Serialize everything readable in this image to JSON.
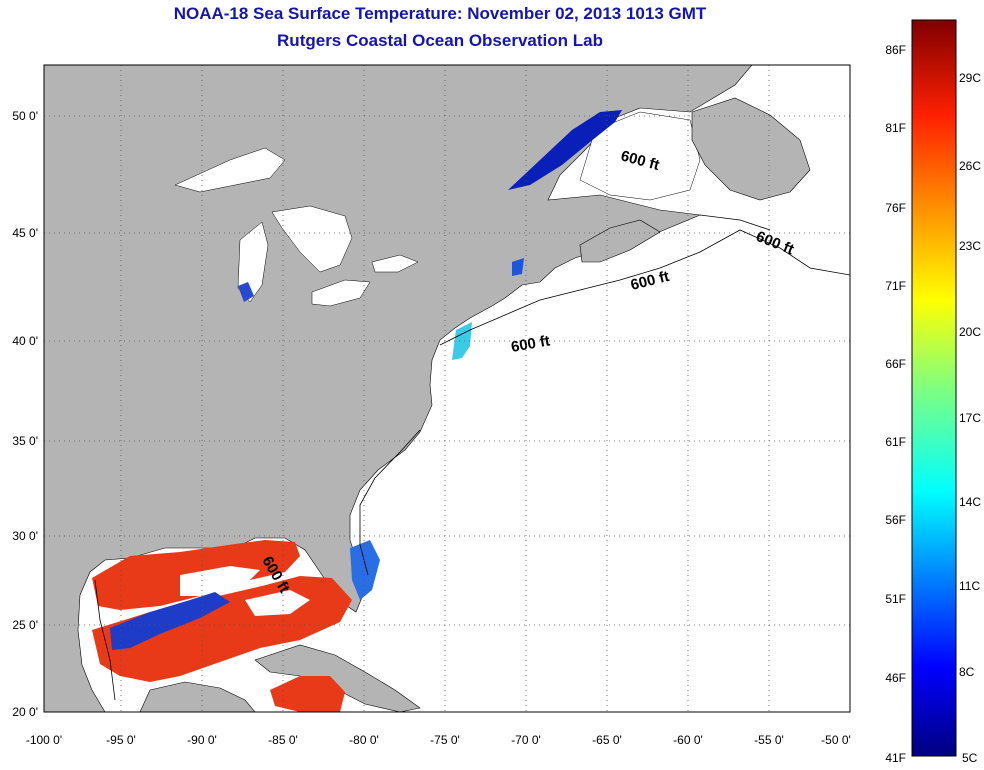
{
  "title": {
    "line1": "NOAA-18 Sea Surface Temperature:  November 02, 2013 1013 GMT",
    "line2": "Rutgers Coastal Ocean Observation Lab"
  },
  "map": {
    "lon_ticks": [
      "-100 0'",
      "-95 0'",
      "-90 0'",
      "-85 0'",
      "-80 0'",
      "-75 0'",
      "-70 0'",
      "-65 0'",
      "-60 0'",
      "-55 0'",
      "-50 0'"
    ],
    "lat_ticks": [
      "50 0'",
      "45 0'",
      "40 0'",
      "35 0'",
      "30 0'",
      "25 0'",
      "20 0'"
    ],
    "contour_labels": [
      "600 ft",
      "600 ft",
      "600 ft",
      "600 ft",
      "600 ft"
    ],
    "colors": {
      "land": "#b4b4b4",
      "ocean_nodata": "#ffffff",
      "warm_water": "#e83a18",
      "cold_water": "#0a1fb8",
      "grid": "#555555"
    }
  },
  "colorbar": {
    "fahrenheit": [
      "86F",
      "81F",
      "76F",
      "71F",
      "66F",
      "61F",
      "56F",
      "51F",
      "46F",
      "41F"
    ],
    "celsius": [
      "29C",
      "26C",
      "23C",
      "20C",
      "17C",
      "14C",
      "11C",
      "8C",
      "5C"
    ]
  }
}
